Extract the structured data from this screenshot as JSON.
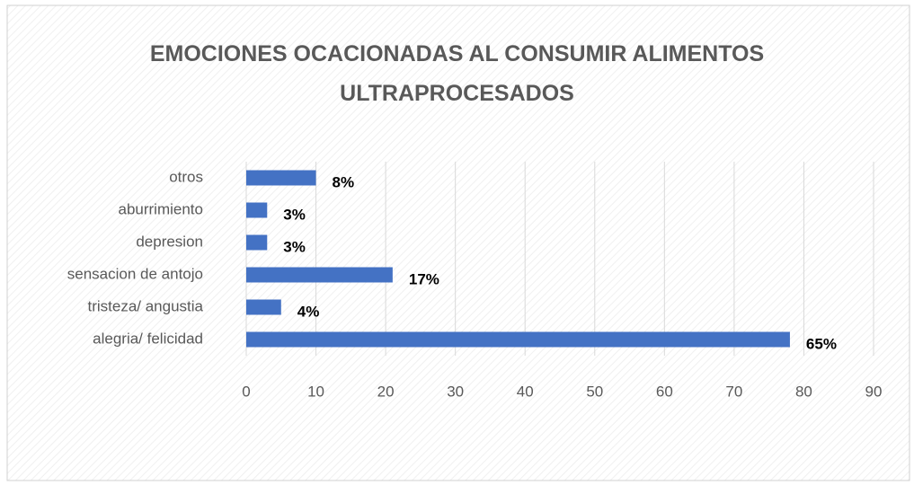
{
  "chart_data": {
    "type": "barh",
    "title": "EMOCIONES OCACIONADAS AL CONSUMIR ALIMENTOS ULTRAPROCESADOS",
    "categories": [
      "alegria/ felicidad",
      "tristeza/ angustia",
      "sensacion de antojo",
      "depresion",
      "aburrimiento",
      "otros"
    ],
    "values": [
      78,
      5,
      21,
      3,
      3,
      10
    ],
    "value_labels": [
      "65%",
      "4%",
      "17%",
      "3%",
      "3%",
      "8%"
    ],
    "color": "#4472c4",
    "xlim": [
      0,
      90
    ],
    "xticks": [
      0,
      10,
      20,
      30,
      40,
      50,
      60,
      70,
      80,
      90
    ],
    "grid": true
  }
}
